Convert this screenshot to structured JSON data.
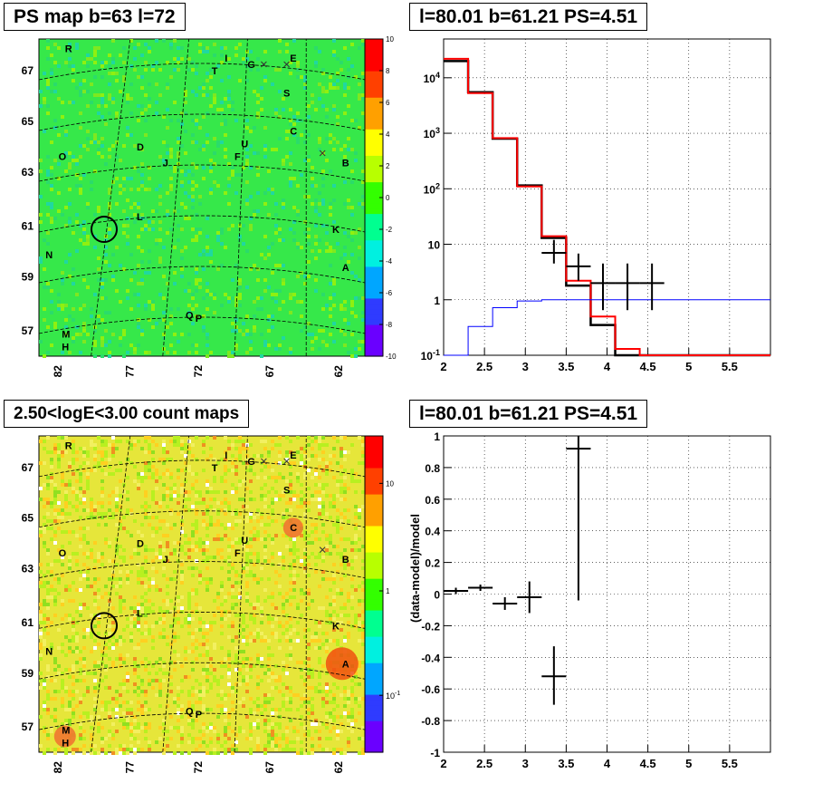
{
  "panels": {
    "top_left_title": "PS map b=63 l=72",
    "top_right_title": "l=80.01 b=61.21 PS=4.51",
    "bottom_left_title": "2.50<logE<3.00 count maps",
    "bottom_right_title": "l=80.01 b=61.21 PS=4.51"
  },
  "chart_data": [
    {
      "type": "heatmap",
      "name": "ps-map",
      "xlabel": "",
      "ylabel": "",
      "x_ticks": [
        "82",
        "77",
        "72",
        "67",
        "62"
      ],
      "y_ticks": [
        "67",
        "65",
        "63",
        "61",
        "59",
        "57"
      ],
      "colorbar_ticks": [
        "10",
        "8",
        "6",
        "4",
        "2",
        "0",
        "-2",
        "-4",
        "-6",
        "-8",
        "-10"
      ],
      "colorbar_range": [
        -10,
        10
      ],
      "colorbar_colors": [
        "#6a00ff",
        "#2f3bff",
        "#00a6ff",
        "#00f0e0",
        "#00ff90",
        "#33ff00",
        "#b8ff00",
        "#ffff00",
        "#ffa000",
        "#ff4000",
        "#ff0000"
      ],
      "background_color": "#36e84a",
      "source_labels": [
        "R",
        "I",
        "E",
        "T",
        "G",
        "S",
        "D",
        "U",
        "C",
        "O",
        "J",
        "F",
        "B",
        "L",
        "K",
        "N",
        "A",
        "Q",
        "P",
        "M",
        "H"
      ],
      "circle_marker": {
        "l": 79.6,
        "b": 61.0
      }
    },
    {
      "type": "line",
      "name": "spectrum",
      "log_y": true,
      "xlim": [
        2.0,
        6.0
      ],
      "ylim": [
        0.1,
        50000
      ],
      "x_ticks": [
        "2",
        "2.5",
        "3",
        "3.5",
        "4",
        "4.5",
        "5",
        "5.5"
      ],
      "y_ticks": [
        "10^-1",
        "1",
        "10",
        "10^2",
        "10^3",
        "10^4"
      ],
      "grid": true,
      "series": [
        {
          "color": "#000000",
          "bin_edges": [
            2.0,
            2.3,
            2.6,
            2.9,
            3.2,
            3.5,
            3.8,
            4.1,
            4.4,
            4.7,
            5.0,
            5.3,
            5.6,
            6.0
          ],
          "values": [
            20000,
            5500,
            800,
            115,
            13,
            1.8,
            0.35,
            0.1,
            0.1,
            0.1,
            0.1,
            0.1,
            0.1
          ]
        },
        {
          "color": "#ff0000",
          "bin_edges": [
            2.0,
            2.3,
            2.6,
            2.9,
            3.2,
            3.5,
            3.8,
            4.1,
            4.4,
            4.7,
            5.0,
            5.3,
            5.6,
            6.0
          ],
          "values": [
            22000,
            5300,
            820,
            110,
            14,
            2.2,
            0.5,
            0.13,
            0.1,
            0.1,
            0.1,
            0.1,
            0.1
          ]
        },
        {
          "color": "#0000ff",
          "bin_edges": [
            2.0,
            2.3,
            2.6,
            2.9,
            3.2,
            3.5,
            3.8,
            4.1,
            4.4,
            4.7,
            5.0,
            5.3,
            5.6,
            6.0
          ],
          "values": [
            0.1,
            0.33,
            0.72,
            0.95,
            1.0,
            1.0,
            1.0,
            1.0,
            1.0,
            1.0,
            1.0,
            1.0,
            1.0
          ]
        }
      ],
      "data_points": [
        {
          "x": 3.35,
          "y": 7,
          "xerr": 0.15,
          "ylow": 4.5,
          "yhigh": 12
        },
        {
          "x": 3.65,
          "y": 4,
          "xerr": 0.15,
          "ylow": 2.2,
          "yhigh": 6.8
        },
        {
          "x": 3.95,
          "y": 2,
          "xerr": 0.15,
          "ylow": 0.65,
          "yhigh": 4.5
        },
        {
          "x": 4.25,
          "y": 2,
          "xerr": 0.15,
          "ylow": 0.65,
          "yhigh": 4.5
        },
        {
          "x": 4.55,
          "y": 2,
          "xerr": 0.15,
          "ylow": 0.65,
          "yhigh": 4.5
        }
      ]
    },
    {
      "type": "heatmap",
      "name": "count-map",
      "xlabel": "",
      "ylabel": "",
      "x_ticks": [
        "82",
        "77",
        "72",
        "67",
        "62"
      ],
      "y_ticks": [
        "67",
        "65",
        "63",
        "61",
        "59",
        "57"
      ],
      "colorbar_ticks": [
        "10",
        "1",
        "10^-1"
      ],
      "colorbar_colors": [
        "#6a00ff",
        "#2f3bff",
        "#00a6ff",
        "#00f0e0",
        "#00ff90",
        "#33ff00",
        "#b8ff00",
        "#ffff00",
        "#ffa000",
        "#ff4000",
        "#ff0000"
      ],
      "background_color": "#e6e63a",
      "source_labels": [
        "R",
        "I",
        "E",
        "T",
        "G",
        "S",
        "D",
        "U",
        "C",
        "O",
        "J",
        "F",
        "B",
        "L",
        "K",
        "N",
        "A",
        "Q",
        "P",
        "M",
        "H"
      ],
      "circle_marker": {
        "l": 79.6,
        "b": 61.0
      }
    },
    {
      "type": "scatter",
      "name": "residuals",
      "ylabel": "(data-model)/model",
      "xlim": [
        2.0,
        6.0
      ],
      "ylim": [
        -1.0,
        1.0
      ],
      "x_ticks": [
        "2",
        "2.5",
        "3",
        "3.5",
        "4",
        "4.5",
        "5",
        "5.5"
      ],
      "y_ticks": [
        "-1",
        "-0.8",
        "-0.6",
        "-0.4",
        "-0.2",
        "0",
        "0.2",
        "0.4",
        "0.6",
        "0.8",
        "1"
      ],
      "grid": true,
      "points": [
        {
          "x": 2.15,
          "y": 0.02,
          "xerr": 0.15,
          "ylow": 0.0,
          "yhigh": 0.04
        },
        {
          "x": 2.45,
          "y": 0.04,
          "xerr": 0.15,
          "ylow": 0.02,
          "yhigh": 0.06
        },
        {
          "x": 2.75,
          "y": -0.06,
          "xerr": 0.15,
          "ylow": -0.1,
          "yhigh": -0.02
        },
        {
          "x": 3.05,
          "y": -0.02,
          "xerr": 0.15,
          "ylow": -0.12,
          "yhigh": 0.08
        },
        {
          "x": 3.35,
          "y": -0.52,
          "xerr": 0.15,
          "ylow": -0.7,
          "yhigh": -0.33
        },
        {
          "x": 3.65,
          "y": 0.92,
          "xerr": 0.15,
          "ylow": -0.04,
          "yhigh": 1.0
        }
      ]
    }
  ]
}
